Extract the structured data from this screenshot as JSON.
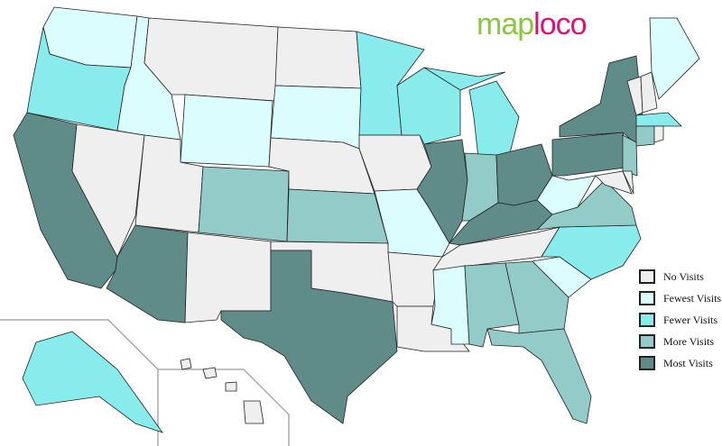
{
  "logo": {
    "part1": "map",
    "part2": "loco"
  },
  "legend": [
    {
      "id": "none",
      "label": "No Visits",
      "color": "#efefef"
    },
    {
      "id": "fewest",
      "label": "Fewest Visits",
      "color": "#dcfdfd"
    },
    {
      "id": "fewer",
      "label": "Fewer Visits",
      "color": "#88ecec"
    },
    {
      "id": "more",
      "label": "More Visits",
      "color": "#93cbc9"
    },
    {
      "id": "most",
      "label": "Most Visits",
      "color": "#5f8b88"
    }
  ],
  "states": {
    "CA": "most",
    "AZ": "most",
    "TX": "most",
    "IL": "most",
    "KY": "most",
    "OH": "most",
    "PA": "most",
    "NY": "most",
    "CO": "more",
    "KS": "more",
    "IN": "more",
    "VA": "more",
    "AL": "more",
    "GA": "more",
    "FL": "more",
    "NJ": "more",
    "CT": "more",
    "OR": "fewer",
    "MN": "fewer",
    "WI": "fewer",
    "MI": "fewer",
    "NC": "fewer",
    "MA": "fewer",
    "AK": "fewer",
    "WA": "fewest",
    "ID": "fewest",
    "WY": "fewest",
    "SD": "fewest",
    "MO": "fewest",
    "MS": "fewest",
    "SC": "fewest",
    "WV": "fewest",
    "ME": "fewest",
    "NV": "none",
    "UT": "none",
    "MT": "none",
    "NM": "none",
    "ND": "none",
    "NE": "none",
    "OK": "none",
    "IA": "none",
    "AR": "none",
    "LA": "none",
    "TN": "none",
    "MD": "none",
    "DE": "none",
    "VT": "none",
    "NH": "none",
    "RI": "none",
    "HI": "none"
  }
}
